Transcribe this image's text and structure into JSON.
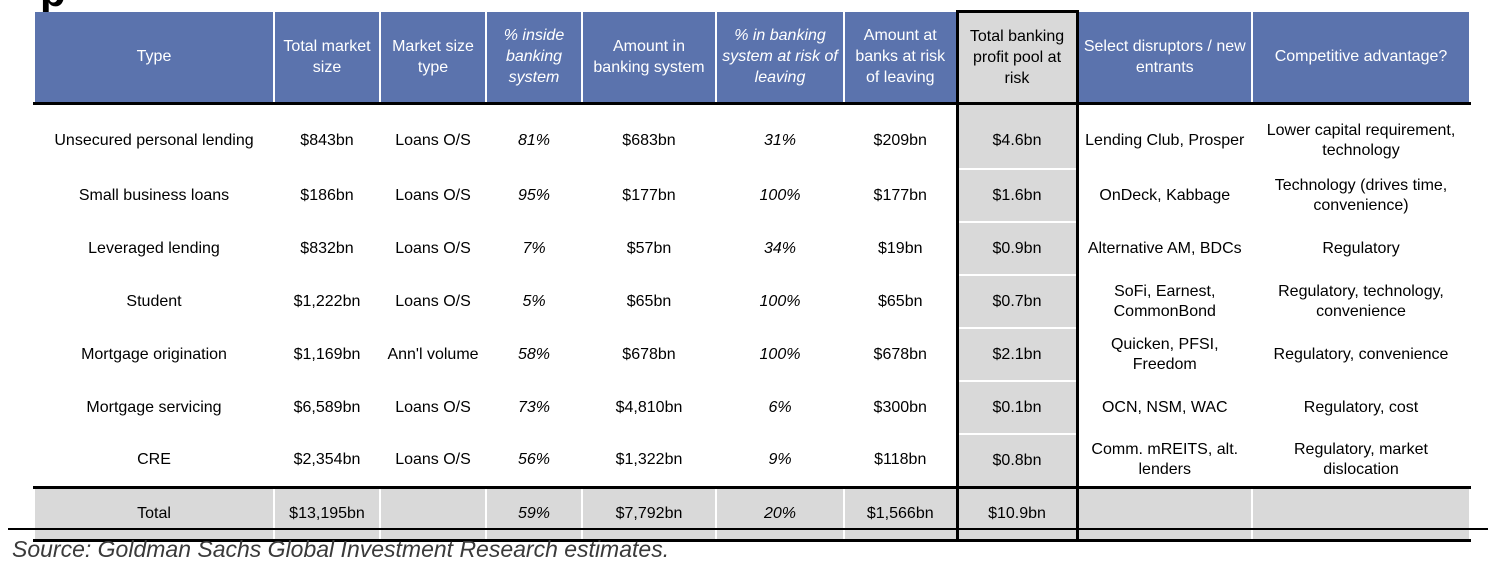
{
  "title_fragment": "p",
  "headers": [
    {
      "label": "Type",
      "italic": false
    },
    {
      "label": "Total market size",
      "italic": false
    },
    {
      "label": "Market size type",
      "italic": false
    },
    {
      "label": "% inside banking system",
      "italic": true
    },
    {
      "label": "Amount in banking system",
      "italic": false
    },
    {
      "label": "% in banking system at risk of leaving",
      "italic": true
    },
    {
      "label": "Amount at banks at risk of leaving",
      "italic": false
    },
    {
      "label": "Total banking profit pool at risk",
      "italic": false
    },
    {
      "label": "Select disruptors / new entrants",
      "italic": false
    },
    {
      "label": "Competitive advantage?",
      "italic": false
    }
  ],
  "rows": [
    [
      "Unsecured personal lending",
      "$843bn",
      "Loans O/S",
      "81%",
      "$683bn",
      "31%",
      "$209bn",
      "$4.6bn",
      "Lending Club, Prosper",
      "Lower capital requirement, technology"
    ],
    [
      "Small business loans",
      "$186bn",
      "Loans O/S",
      "95%",
      "$177bn",
      "100%",
      "$177bn",
      "$1.6bn",
      "OnDeck, Kabbage",
      "Technology (drives time, convenience)"
    ],
    [
      "Leveraged lending",
      "$832bn",
      "Loans O/S",
      "7%",
      "$57bn",
      "34%",
      "$19bn",
      "$0.9bn",
      "Alternative AM, BDCs",
      "Regulatory"
    ],
    [
      "Student",
      "$1,222bn",
      "Loans O/S",
      "5%",
      "$65bn",
      "100%",
      "$65bn",
      "$0.7bn",
      "SoFi, Earnest, CommonBond",
      "Regulatory, technology, convenience"
    ],
    [
      "Mortgage origination",
      "$1,169bn",
      "Ann'l volume",
      "58%",
      "$678bn",
      "100%",
      "$678bn",
      "$2.1bn",
      "Quicken, PFSI, Freedom",
      "Regulatory, convenience"
    ],
    [
      "Mortgage servicing",
      "$6,589bn",
      "Loans O/S",
      "73%",
      "$4,810bn",
      "6%",
      "$300bn",
      "$0.1bn",
      "OCN, NSM, WAC",
      "Regulatory, cost"
    ],
    [
      "CRE",
      "$2,354bn",
      "Loans O/S",
      "56%",
      "$1,322bn",
      "9%",
      "$118bn",
      "$0.8bn",
      "Comm. mREITS, alt. lenders",
      "Regulatory, market dislocation"
    ]
  ],
  "total": [
    "Total",
    "$13,195bn",
    "",
    "59%",
    "$7,792bn",
    "20%",
    "$1,566bn",
    "$10.9bn",
    "",
    ""
  ],
  "source": "Source: Goldman Sachs Global Investment Research estimates.",
  "colors": {
    "header_bg": "#5b73ad",
    "highlight_bg": "#d9d9d9"
  }
}
